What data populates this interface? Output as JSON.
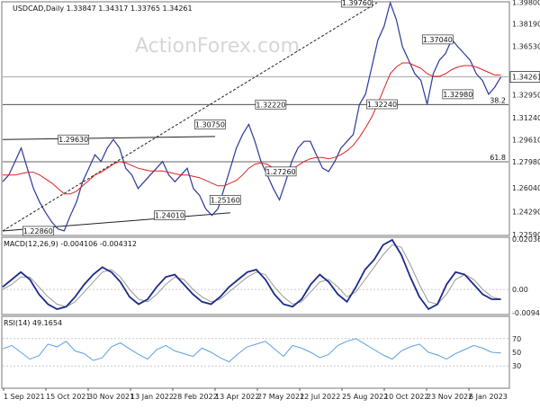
{
  "chart_data": {
    "type": "line",
    "title": "USDCAD,Daily 1.33847 1.34317 1.33765 1.34261",
    "watermark": "ActionForex.com",
    "x_labels": [
      "1 Sep 2021",
      "15 Oct 2021",
      "30 Nov 2021",
      "13 Jan 2022",
      "28 Feb 2022",
      "13 Apr 2022",
      "27 May 2022",
      "12 Jul 2022",
      "25 Aug 2022",
      "10 Oct 2022",
      "23 Nov 2022",
      "6 Jan 2023"
    ],
    "price_panel": {
      "ylim": [
        1.2259,
        1.3976
      ],
      "y_ticks": [
        "1.39800",
        "1.38190",
        "1.36530",
        "1.34261",
        "1.32950",
        "1.31240",
        "1.29610",
        "1.27980",
        "1.26040",
        "1.24290",
        "1.22590"
      ],
      "last_price": "1.34261",
      "levels": [
        {
          "label": "1.39760",
          "x": 0.7,
          "y": 1.3976
        },
        {
          "label": "1.37040",
          "x": 0.86,
          "y": 1.3704
        },
        {
          "label": "1.32980",
          "x": 0.9,
          "y": 1.3298
        },
        {
          "label": "1.32240",
          "x": 0.75,
          "y": 1.3224
        },
        {
          "label": "1.32220",
          "x": 0.53,
          "y": 1.3222
        },
        {
          "label": "1.30750",
          "x": 0.41,
          "y": 1.3075
        },
        {
          "label": "1.29630",
          "x": 0.14,
          "y": 1.2963
        },
        {
          "label": "1.27260",
          "x": 0.55,
          "y": 1.2726
        },
        {
          "label": "1.25160",
          "x": 0.44,
          "y": 1.2516
        },
        {
          "label": "1.24010",
          "x": 0.33,
          "y": 1.2401
        },
        {
          "label": "1.22860",
          "x": 0.07,
          "y": 1.2286
        }
      ],
      "fib_levels": [
        {
          "label": "38.2",
          "y": 1.3222
        },
        {
          "label": "61.8",
          "y": 1.2798
        }
      ],
      "close": [
        1.265,
        1.27,
        1.28,
        1.29,
        1.275,
        1.26,
        1.25,
        1.242,
        1.235,
        1.23,
        1.2286,
        1.24,
        1.25,
        1.265,
        1.275,
        1.285,
        1.28,
        1.29,
        1.2963,
        1.29,
        1.275,
        1.27,
        1.26,
        1.265,
        1.27,
        1.275,
        1.28,
        1.27,
        1.265,
        1.27,
        1.275,
        1.26,
        1.255,
        1.245,
        1.2401,
        1.245,
        1.26,
        1.275,
        1.29,
        1.3,
        1.3075,
        1.295,
        1.28,
        1.27,
        1.26,
        1.2516,
        1.265,
        1.28,
        1.29,
        1.295,
        1.295,
        1.285,
        1.275,
        1.2726,
        1.28,
        1.29,
        1.295,
        1.3,
        1.3222,
        1.33,
        1.35,
        1.37,
        1.38,
        1.3976,
        1.385,
        1.365,
        1.355,
        1.345,
        1.34,
        1.3224,
        1.345,
        1.355,
        1.36,
        1.3704,
        1.365,
        1.36,
        1.355,
        1.345,
        1.34,
        1.3298,
        1.335,
        1.3426
      ],
      "ma": [
        1.27,
        1.27,
        1.27,
        1.271,
        1.272,
        1.272,
        1.27,
        1.267,
        1.264,
        1.26,
        1.256,
        1.256,
        1.258,
        1.262,
        1.266,
        1.27,
        1.272,
        1.275,
        1.278,
        1.28,
        1.279,
        1.277,
        1.275,
        1.274,
        1.273,
        1.273,
        1.273,
        1.272,
        1.271,
        1.27,
        1.27,
        1.269,
        1.268,
        1.266,
        1.264,
        1.262,
        1.262,
        1.264,
        1.266,
        1.27,
        1.275,
        1.278,
        1.279,
        1.278,
        1.275,
        1.272,
        1.272,
        1.274,
        1.277,
        1.28,
        1.282,
        1.283,
        1.283,
        1.282,
        1.283,
        1.285,
        1.288,
        1.292,
        1.298,
        1.305,
        1.313,
        1.323,
        1.334,
        1.345,
        1.35,
        1.353,
        1.353,
        1.351,
        1.349,
        1.345,
        1.343,
        1.343,
        1.345,
        1.348,
        1.35,
        1.351,
        1.351,
        1.35,
        1.348,
        1.346,
        1.344,
        1.344
      ],
      "trendlines": [
        {
          "x1": 0.0,
          "y1": 1.2286,
          "x2": 0.74,
          "y2": 1.3976,
          "style": "dashed"
        },
        {
          "x1": 0.0,
          "y1": 1.2963,
          "x2": 0.42,
          "y2": 1.2985,
          "style": "solid"
        },
        {
          "x1": 0.0,
          "y1": 1.2286,
          "x2": 0.45,
          "y2": 1.242,
          "style": "solid"
        }
      ]
    },
    "macd_panel": {
      "title": "MACD(12,26,9) -0.004106 -0.004312",
      "ylim": [
        -0.009438,
        0.02036
      ],
      "y_ticks": [
        "0.02036",
        "0.00",
        "-0.009438"
      ],
      "macd": [
        0.001,
        0.004,
        0.007,
        0.004,
        -0.002,
        -0.006,
        -0.008,
        -0.007,
        -0.003,
        0.002,
        0.006,
        0.009,
        0.007,
        0.003,
        -0.003,
        -0.006,
        -0.004,
        0.001,
        0.005,
        0.006,
        0.002,
        -0.002,
        -0.005,
        -0.006,
        -0.003,
        0.001,
        0.004,
        0.007,
        0.008,
        0.004,
        -0.002,
        -0.006,
        -0.007,
        -0.004,
        0.002,
        0.006,
        0.003,
        -0.002,
        -0.005,
        0.001,
        0.008,
        0.012,
        0.018,
        0.02,
        0.014,
        0.005,
        -0.003,
        -0.008,
        -0.006,
        0.002,
        0.007,
        0.006,
        0.002,
        -0.002,
        -0.004,
        -0.004
      ],
      "signal": [
        0.0,
        0.002,
        0.005,
        0.005,
        0.001,
        -0.003,
        -0.006,
        -0.007,
        -0.005,
        -0.001,
        0.003,
        0.007,
        0.008,
        0.005,
        0.0,
        -0.004,
        -0.005,
        -0.002,
        0.002,
        0.005,
        0.004,
        0.0,
        -0.003,
        -0.005,
        -0.004,
        -0.001,
        0.002,
        0.005,
        0.007,
        0.006,
        0.001,
        -0.003,
        -0.006,
        -0.005,
        -0.001,
        0.003,
        0.004,
        0.001,
        -0.003,
        -0.001,
        0.004,
        0.009,
        0.014,
        0.018,
        0.017,
        0.01,
        0.002,
        -0.005,
        -0.006,
        -0.002,
        0.004,
        0.006,
        0.004,
        0.0,
        -0.003,
        -0.004
      ]
    },
    "rsi_panel": {
      "title": "RSI(14) 49.1654",
      "ylim": [
        0,
        100
      ],
      "y_ticks": [
        "70",
        "50",
        "30"
      ],
      "values": [
        55,
        60,
        50,
        40,
        45,
        62,
        58,
        66,
        52,
        48,
        38,
        42,
        58,
        64,
        55,
        47,
        40,
        54,
        60,
        52,
        48,
        44,
        56,
        50,
        42,
        36,
        48,
        58,
        62,
        66,
        55,
        44,
        60,
        56,
        50,
        42,
        47,
        60,
        66,
        70,
        62,
        54,
        46,
        40,
        52,
        58,
        62,
        50,
        46,
        40,
        48,
        54,
        60,
        56,
        50,
        49
      ]
    }
  }
}
